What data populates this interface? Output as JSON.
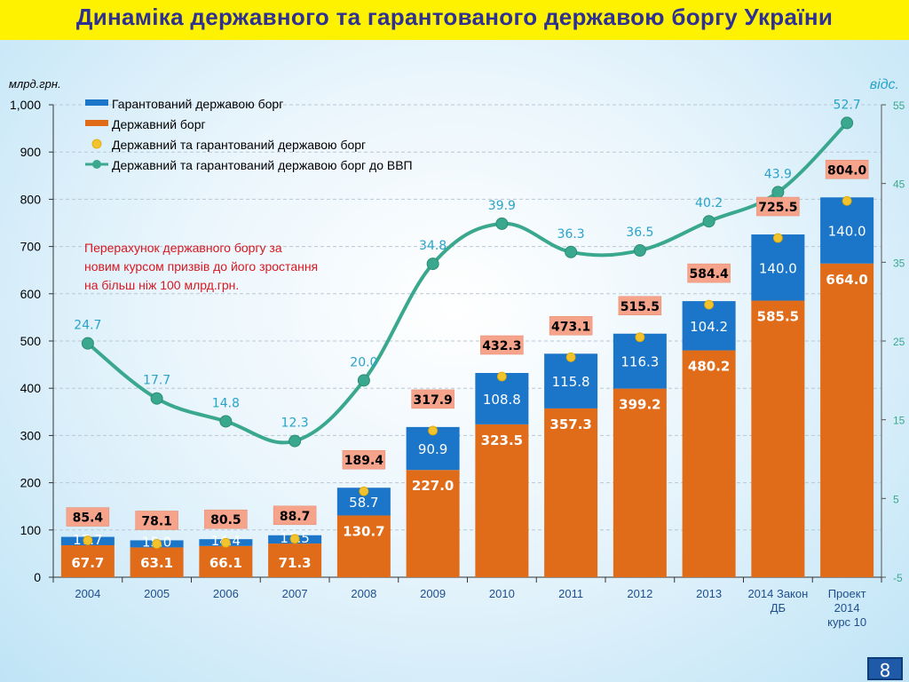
{
  "title": "Динаміка державного та гарантованого державою боргу України",
  "page_number": "8",
  "chart_data": {
    "type": "bar",
    "stacked": true,
    "categories": [
      "2004",
      "2005",
      "2006",
      "2007",
      "2008",
      "2009",
      "2010",
      "2011",
      "2012",
      "2013",
      "2014 Закон ДБ",
      "Проект 2014 курс 10"
    ],
    "category_lines": [
      [
        "2004"
      ],
      [
        "2005"
      ],
      [
        "2006"
      ],
      [
        "2007"
      ],
      [
        "2008"
      ],
      [
        "2009"
      ],
      [
        "2010"
      ],
      [
        "2011"
      ],
      [
        "2012"
      ],
      [
        "2013"
      ],
      [
        "2014 Закон",
        "ДБ"
      ],
      [
        "Проект",
        "2014",
        "курс 10"
      ]
    ],
    "ylabel": "млрд.грн.",
    "y2label": "відс.",
    "ylim": [
      0,
      1000
    ],
    "yticks": [
      "0",
      "100",
      "200",
      "300",
      "400",
      "500",
      "600",
      "700",
      "800",
      "900",
      "1,000"
    ],
    "y2lim": [
      -5,
      55
    ],
    "y2ticks": [
      "-5",
      "5",
      "15",
      "25",
      "35",
      "45",
      "55"
    ],
    "grid": true,
    "legend_position": "top-left",
    "series": [
      {
        "name": "Гарантований державою борг",
        "type": "bar",
        "color": "#1b75c9",
        "values": [
          17.7,
          15.0,
          14.4,
          17.5,
          58.7,
          90.9,
          108.8,
          115.8,
          116.3,
          104.2,
          140.0,
          140.0
        ],
        "labels": [
          "17.7",
          "15.0",
          "14.4",
          "17.5",
          "58.7",
          "90.9",
          "108.8",
          "115.8",
          "116.3",
          "104.2",
          "140.0",
          "140.0"
        ]
      },
      {
        "name": "Державний борг",
        "type": "bar",
        "color": "#e06c1a",
        "values": [
          67.7,
          63.1,
          66.1,
          71.3,
          130.7,
          227.0,
          323.5,
          357.3,
          399.2,
          480.2,
          585.5,
          664.0
        ],
        "labels": [
          "67.7",
          "63.1",
          "66.1",
          "71.3",
          "130.7",
          "227.0",
          "323.5",
          "357.3",
          "399.2",
          "480.2",
          "585.5",
          "664.0"
        ]
      },
      {
        "name": "Державний та гарантований державою борг",
        "type": "point",
        "color": "#f2c32c",
        "values": [
          85.4,
          78.1,
          80.5,
          88.7,
          189.4,
          317.9,
          432.3,
          473.1,
          515.5,
          584.4,
          725.5,
          804.0
        ],
        "labels": [
          "85.4",
          "78.1",
          "80.5",
          "88.7",
          "189.4",
          "317.9",
          "432.3",
          "473.1",
          "515.5",
          "584.4",
          "725.5",
          "804.0"
        ]
      },
      {
        "name": "Державний та гарантований державою борг до ВВП",
        "type": "line",
        "axis": "right",
        "color": "#3aa88e",
        "values": [
          24.7,
          17.7,
          14.8,
          12.3,
          20.0,
          34.8,
          39.9,
          36.3,
          36.5,
          40.2,
          43.9,
          52.7
        ],
        "labels": [
          "24.7",
          "17.7",
          "14.8",
          "12.3",
          "20.0",
          "34.8",
          "39.9",
          "36.3",
          "36.5",
          "40.2",
          "43.9",
          "52.7"
        ]
      }
    ],
    "annotation": [
      "Перерахунок державного боргу за",
      "новим курсом призвів до його зростання",
      "на більш ніж 100 млрд.грн."
    ]
  },
  "colors": {
    "title_bg": "#fff200",
    "title_text": "#2e3192",
    "total_label_bg": "#f6a38c",
    "total_label_text": "#000000",
    "line_label_text": "#29a3c9",
    "annotation_text": "#d71920",
    "right_axis_text": "#3aa88e"
  }
}
